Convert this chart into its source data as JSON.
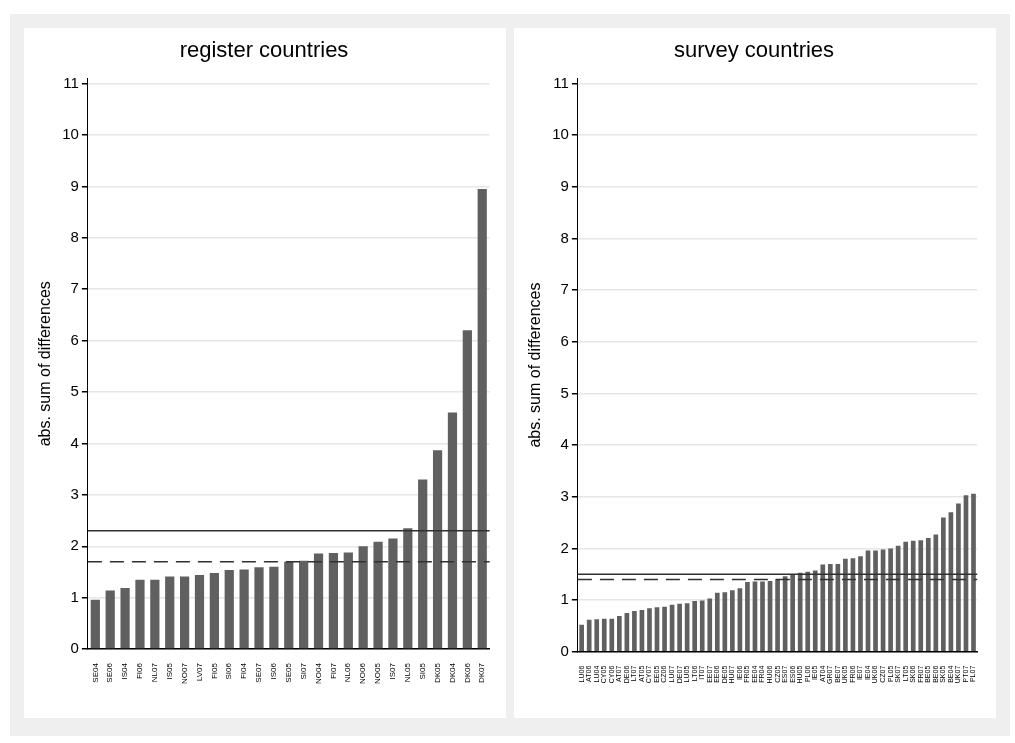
{
  "chart_data": [
    {
      "type": "bar",
      "title": "register countries",
      "ylabel": "abs. sum of differences",
      "categories": [
        "SE04",
        "SE06",
        "IS04",
        "FI06",
        "NL07",
        "IS05",
        "NO07",
        "LV07",
        "FI05",
        "SI06",
        "FI04",
        "SE07",
        "IS06",
        "SE05",
        "SI07",
        "NO04",
        "FI07",
        "NL06",
        "NO06",
        "NO05",
        "IS07",
        "NL05",
        "SI05",
        "DK05",
        "DK04",
        "DK06",
        "DK07"
      ],
      "values": [
        0.96,
        1.14,
        1.19,
        1.35,
        1.35,
        1.41,
        1.41,
        1.44,
        1.48,
        1.54,
        1.55,
        1.59,
        1.6,
        1.7,
        1.72,
        1.86,
        1.87,
        1.88,
        2.0,
        2.09,
        2.15,
        2.35,
        3.3,
        3.87,
        4.6,
        6.2,
        8.95
      ],
      "color": "#606060",
      "ylim": [
        0,
        11.1
      ],
      "yticks": [
        0,
        1,
        2,
        3,
        4,
        5,
        6,
        7,
        8,
        9,
        10,
        11
      ],
      "grid": "y",
      "legend": false,
      "ref_lines": [
        {
          "axis": "y",
          "value": 2.3,
          "color": "#303030",
          "line_style": "solid"
        },
        {
          "axis": "y",
          "value": 1.7,
          "color": "#303030",
          "line_style": "dashed"
        }
      ]
    },
    {
      "type": "bar",
      "title": "survey countries",
      "ylabel": "abs. sum of differences",
      "categories": [
        "LU06",
        "AT06",
        "LU04",
        "CY05",
        "CY06",
        "AT07",
        "DE06",
        "LT07",
        "AT05",
        "CY07",
        "EE05",
        "CZ06",
        "LU07",
        "DE07",
        "LU05",
        "LT06",
        "IT07",
        "EE07",
        "EE06",
        "DE05",
        "HU07",
        "IE06",
        "FR05",
        "EE04",
        "FR04",
        "HU06",
        "CZ05",
        "ES07",
        "ES06",
        "HU05",
        "PL06",
        "IE05",
        "AT04",
        "GR07",
        "BE07",
        "UK05",
        "FR06",
        "IE07",
        "IE04",
        "UK06",
        "CZ07",
        "PL05",
        "SK07",
        "LT05",
        "SK06",
        "FR07",
        "BE05",
        "BE06",
        "SK05",
        "BE04",
        "UK07",
        "PT07",
        "PL07"
      ],
      "values": [
        0.52,
        0.62,
        0.63,
        0.64,
        0.64,
        0.69,
        0.75,
        0.79,
        0.81,
        0.84,
        0.86,
        0.87,
        0.91,
        0.93,
        0.94,
        0.98,
        0.99,
        1.03,
        1.14,
        1.15,
        1.19,
        1.23,
        1.35,
        1.36,
        1.36,
        1.37,
        1.41,
        1.46,
        1.5,
        1.53,
        1.55,
        1.57,
        1.69,
        1.7,
        1.7,
        1.8,
        1.81,
        1.85,
        1.96,
        1.96,
        1.98,
        2.0,
        2.05,
        2.13,
        2.15,
        2.16,
        2.2,
        2.27,
        2.6,
        2.7,
        2.87,
        3.03,
        3.06
      ],
      "color": "#606060",
      "ylim": [
        0,
        11.1
      ],
      "yticks": [
        0,
        1,
        2,
        3,
        4,
        5,
        6,
        7,
        8,
        9,
        10,
        11
      ],
      "grid": "y",
      "legend": false,
      "ref_lines": [
        {
          "axis": "y",
          "value": 1.5,
          "color": "#303030",
          "line_style": "solid"
        },
        {
          "axis": "y",
          "value": 1.4,
          "color": "#303030",
          "line_style": "dashed"
        }
      ]
    }
  ]
}
